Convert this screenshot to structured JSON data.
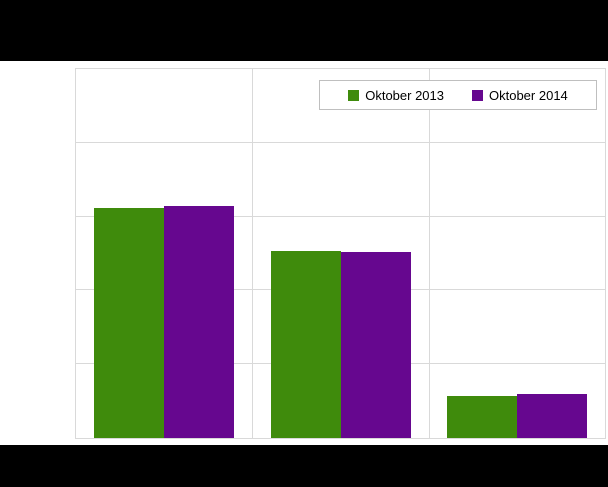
{
  "chart_data": {
    "type": "bar",
    "title": "",
    "categories": [
      "",
      "",
      ""
    ],
    "series": [
      {
        "name": "Oktober 2013",
        "color": "#3f8b0c",
        "values": [
          31.2,
          25.3,
          5.7
        ]
      },
      {
        "name": "Oktober 2014",
        "color": "#66078f",
        "values": [
          31.4,
          25.2,
          6.0
        ]
      }
    ],
    "xlabel": "",
    "ylabel": "",
    "ylim": [
      0,
      50
    ],
    "gridlines_y": [
      10,
      20,
      30,
      40,
      50
    ],
    "grid": "on",
    "legend_position": "top-right"
  },
  "legend": {
    "items": [
      {
        "label": "Oktober 2013",
        "color": "#3f8b0c"
      },
      {
        "label": "Oktober 2014",
        "color": "#66078f"
      }
    ]
  },
  "colors": {
    "band": "#000000",
    "plot_background": "#ffffff",
    "gridline": "#d9d9d9",
    "legend_border": "#bfbfbf",
    "series_2013": "#3f8b0c",
    "series_2014": "#66078f"
  }
}
